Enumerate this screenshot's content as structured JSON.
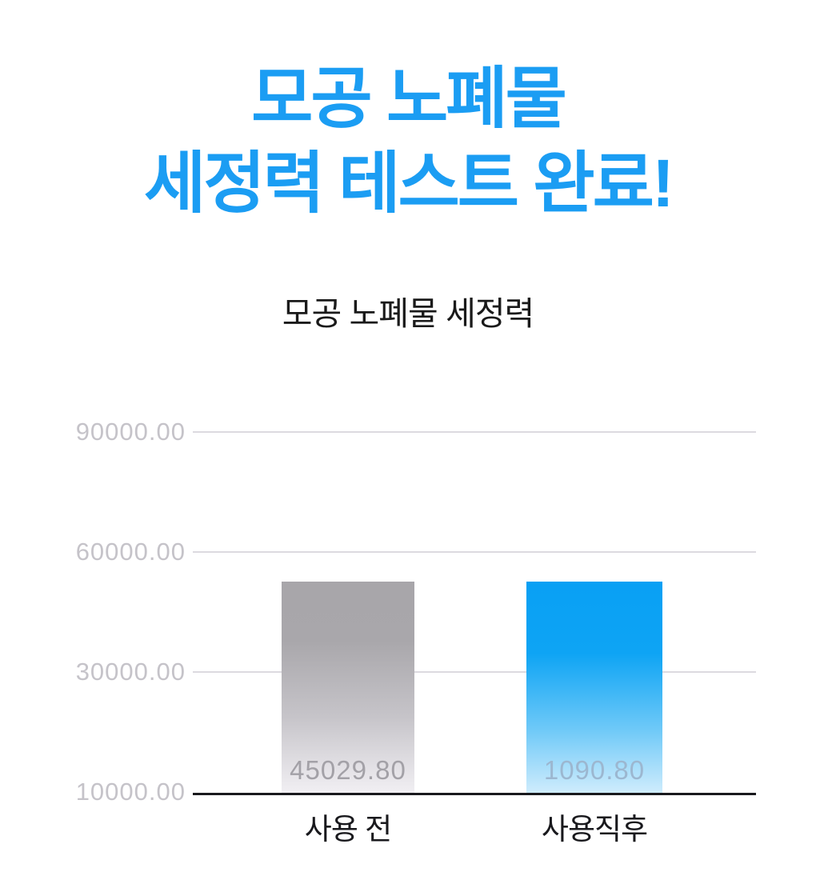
{
  "header": {
    "title_line1": "모공 노폐물",
    "title_line2": "세정력 테스트 완료!"
  },
  "chart_data": {
    "type": "bar",
    "title": "모공 노폐물 세정력",
    "categories": [
      "사용 전",
      "사용직후"
    ],
    "values": [
      45029.8,
      1090.8
    ],
    "series": [
      {
        "name": "사용 전",
        "value": 45029.8,
        "value_label": "45029.80",
        "bar_style": "gray-gradient"
      },
      {
        "name": "사용직후",
        "value": 1090.8,
        "value_label": "1090.80",
        "bar_style": "blue-gradient"
      }
    ],
    "xlabel": "",
    "ylabel": "",
    "ytick_labels": [
      "90000.00",
      "60000.00",
      "30000.00",
      "10000.00"
    ],
    "ytick_values": [
      90000,
      60000,
      30000,
      10000
    ],
    "ylim": [
      10000,
      100000
    ],
    "grid": "horizontal-light",
    "legend": "none"
  },
  "colors": {
    "accent_blue": "#1b9df3",
    "chart_title_color": "#1a1a1a",
    "tick_label_color": "#c5c3c9",
    "grid_color": "#dcdae0",
    "axis_color": "#19191d",
    "bar_gray_top": "#a8a6aa",
    "bar_gray_bottom": "#f1eff3",
    "bar_blue_top": "#09a0f4",
    "bar_blue_bottom": "#cfecfc",
    "value_gray_color": "#a3a1a7",
    "value_blue_color": "#9cb7d0",
    "category_color": "#19191d",
    "background": "#ffffff"
  }
}
